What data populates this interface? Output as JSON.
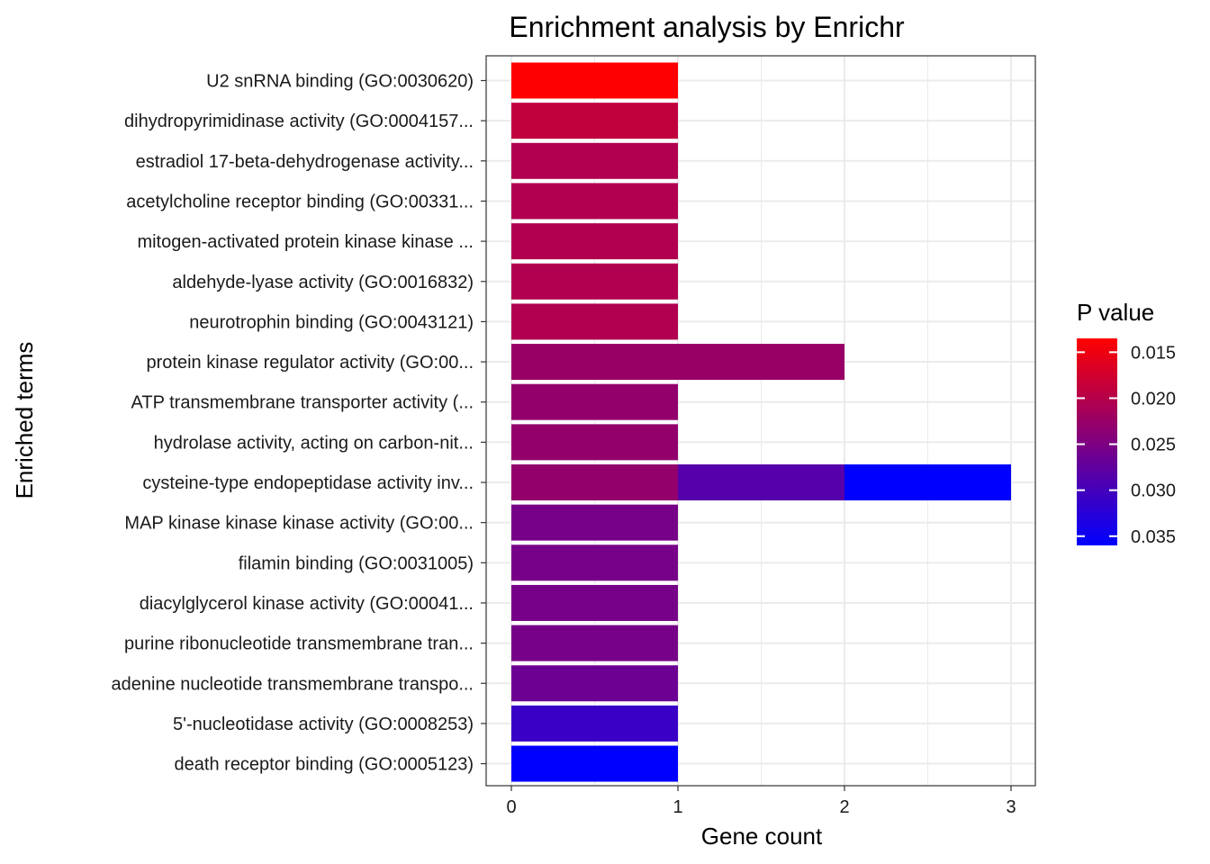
{
  "chart_data": {
    "type": "bar",
    "title": "Enrichment analysis by Enrichr",
    "xlabel": "Gene count",
    "ylabel": "Enriched terms",
    "xlim": [
      0,
      3
    ],
    "x_ticks": [
      0,
      1,
      2,
      3
    ],
    "categories": [
      "U2 snRNA binding (GO:0030620)",
      "dihydropyrimidinase activity (GO:0004157...",
      "estradiol 17-beta-dehydrogenase activity...",
      "acetylcholine receptor binding (GO:00331...",
      "mitogen-activated protein kinase kinase ...",
      "aldehyde-lyase activity (GO:0016832)",
      "neurotrophin binding (GO:0043121)",
      "protein kinase regulator activity (GO:00...",
      "ATP transmembrane transporter activity (...",
      "hydrolase activity, acting on carbon-nit...",
      "cysteine-type endopeptidase activity inv...",
      "MAP kinase kinase kinase activity (GO:00...",
      "filamin binding (GO:0031005)",
      "diacylglycerol kinase activity (GO:00041...",
      "purine ribonucleotide transmembrane tran...",
      "adenine nucleotide transmembrane transpo...",
      "5'-nucleotidase activity (GO:0008253)",
      "death receptor binding (GO:0005123)"
    ],
    "segments": [
      [
        {
          "count": 1,
          "pvalue": 0.0135
        }
      ],
      [
        {
          "count": 1,
          "pvalue": 0.019
        }
      ],
      [
        {
          "count": 1,
          "pvalue": 0.0205
        }
      ],
      [
        {
          "count": 1,
          "pvalue": 0.0205
        }
      ],
      [
        {
          "count": 1,
          "pvalue": 0.0205
        }
      ],
      [
        {
          "count": 1,
          "pvalue": 0.0205
        }
      ],
      [
        {
          "count": 1,
          "pvalue": 0.0205
        }
      ],
      [
        {
          "count": 1,
          "pvalue": 0.0225
        },
        {
          "count": 1,
          "pvalue": 0.0225
        }
      ],
      [
        {
          "count": 1,
          "pvalue": 0.023
        }
      ],
      [
        {
          "count": 1,
          "pvalue": 0.023
        }
      ],
      [
        {
          "count": 1,
          "pvalue": 0.023
        },
        {
          "count": 1,
          "pvalue": 0.0285
        },
        {
          "count": 1,
          "pvalue": 0.036
        }
      ],
      [
        {
          "count": 1,
          "pvalue": 0.0255
        }
      ],
      [
        {
          "count": 1,
          "pvalue": 0.0255
        }
      ],
      [
        {
          "count": 1,
          "pvalue": 0.0255
        }
      ],
      [
        {
          "count": 1,
          "pvalue": 0.0255
        }
      ],
      [
        {
          "count": 1,
          "pvalue": 0.0265
        }
      ],
      [
        {
          "count": 1,
          "pvalue": 0.031
        }
      ],
      [
        {
          "count": 1,
          "pvalue": 0.036
        }
      ]
    ],
    "legend": {
      "title": "P value",
      "position": "right",
      "low_color": "#ff0000",
      "high_color": "#0000ff",
      "range": [
        0.0135,
        0.036
      ],
      "ticks": [
        0.015,
        0.02,
        0.025,
        0.03,
        0.035
      ],
      "tick_labels": [
        "0.015",
        "0.020",
        "0.025",
        "0.030",
        "0.035"
      ]
    },
    "grid": true
  }
}
